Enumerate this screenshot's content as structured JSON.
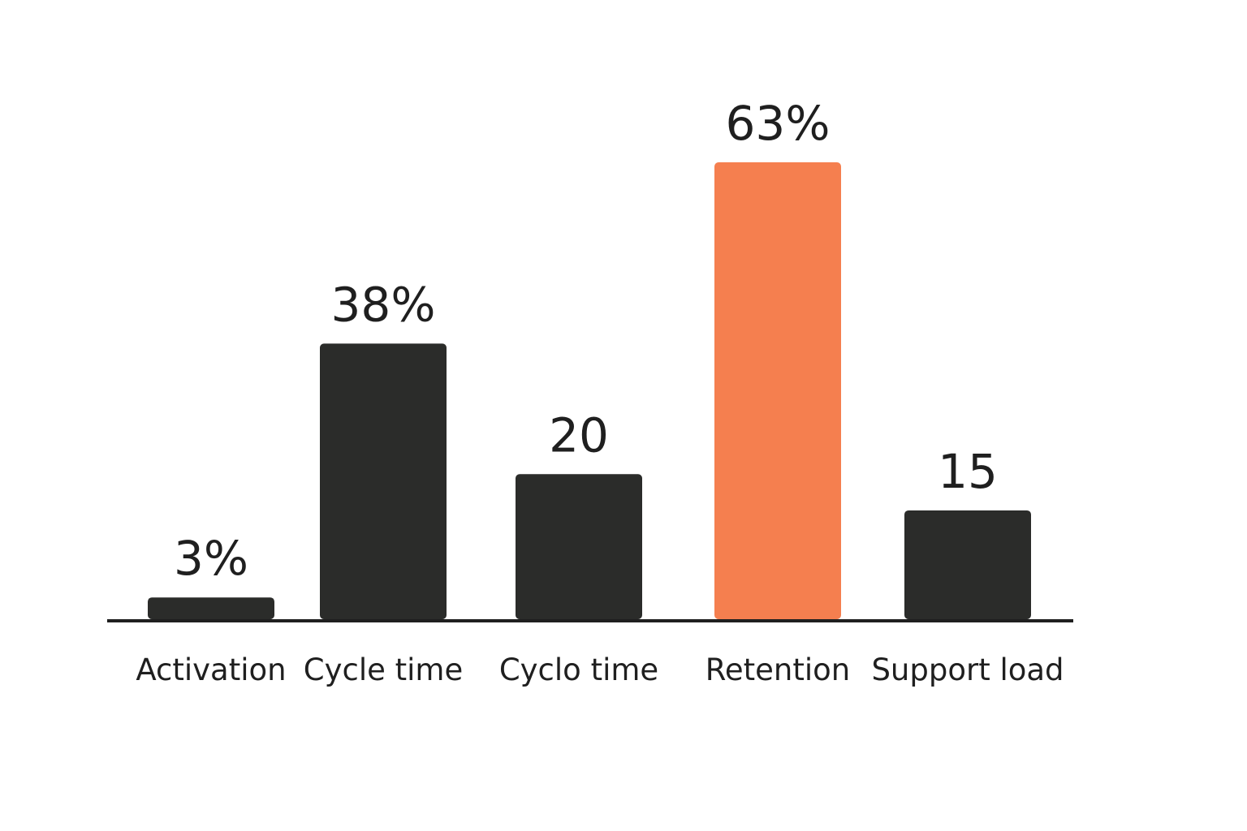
{
  "chart_data": {
    "type": "bar",
    "categories": [
      "Activation",
      "Cycle time",
      "Cyclo time",
      "Retention",
      "Support load"
    ],
    "values": [
      3,
      38,
      20,
      63,
      15
    ],
    "value_labels": [
      "3%",
      "38%",
      "20",
      "63%",
      "15"
    ],
    "colors": [
      "#2b2c2a",
      "#2b2c2a",
      "#2b2c2a",
      "#f57f4f",
      "#2b2c2a"
    ]
  }
}
